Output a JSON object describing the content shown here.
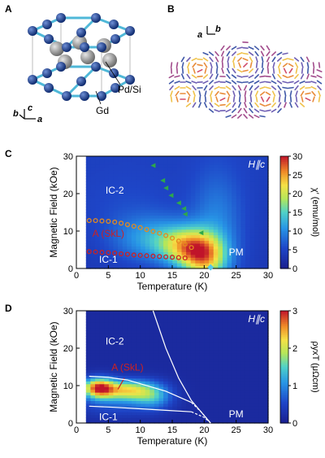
{
  "panels": {
    "a": {
      "label": "A",
      "atom_gd": "Gd",
      "atom_pdsi": "Pd/Si",
      "axis_a": "a",
      "axis_b": "b",
      "axis_c": "c"
    },
    "b": {
      "label": "B",
      "axis_a": "a",
      "axis_b": "b"
    },
    "c": {
      "label": "C"
    },
    "d": {
      "label": "D"
    }
  },
  "chart_data": [
    {
      "type": "heatmap",
      "panel": "C",
      "xlabel": "Temperature (K)",
      "ylabel": "Magnetic Field (kOe)",
      "xlim": [
        0,
        30
      ],
      "ylim": [
        0,
        30
      ],
      "xticks": [
        0,
        5,
        10,
        15,
        20,
        25,
        30
      ],
      "yticks": [
        0,
        10,
        20,
        30
      ],
      "colorbar": {
        "label": "χ′ (emu/mol)",
        "min": 0,
        "max": 30,
        "ticks": [
          0,
          5,
          10,
          15,
          20,
          25,
          30
        ]
      },
      "field_label": "H∥c",
      "annotations": [
        "IC-2",
        "A (SkL)",
        "IC-1",
        "PM"
      ],
      "colors": {
        "high": "#c0142a",
        "mid": "#f3e24a",
        "low": "#1a1f8f",
        "circle": "#e58a1e",
        "circle_red": "#cc2222",
        "triangle": "#2ea84a"
      },
      "series": [
        {
          "marker": "circle-orange",
          "x": [
            2,
            3,
            4,
            5,
            6,
            7,
            8,
            9,
            10,
            11,
            12,
            13,
            14,
            15,
            16,
            17,
            18
          ],
          "y": [
            12.8,
            12.8,
            12.7,
            12.6,
            12.4,
            12.1,
            11.7,
            11.3,
            10.9,
            10.4,
            9.9,
            9.4,
            8.8,
            8.1,
            7.3,
            6.5,
            5.6
          ]
        },
        {
          "marker": "circle-red",
          "x": [
            2,
            3,
            4,
            5,
            6,
            7,
            8,
            9,
            10,
            11,
            12,
            13,
            14,
            15,
            16,
            17
          ],
          "y": [
            4.5,
            4.4,
            4.3,
            4.2,
            4.1,
            3.9,
            3.8,
            3.6,
            3.5,
            3.4,
            3.3,
            3.2,
            3.1,
            3.0,
            2.9,
            2.8
          ]
        },
        {
          "marker": "triangle-green",
          "x": [
            12,
            13.5,
            14,
            14.8,
            16,
            16.8,
            17,
            19.5
          ],
          "y": [
            27.5,
            23.5,
            21.5,
            19.5,
            17.5,
            16.0,
            14.5,
            9.5
          ]
        },
        {
          "marker": "diamond-cyan",
          "x": [
            21
          ],
          "y": [
            0.3
          ]
        }
      ]
    },
    {
      "type": "heatmap",
      "panel": "D",
      "xlabel": "Temperature (K)",
      "ylabel": "Magnetic Field (kOe)",
      "xlim": [
        0,
        30
      ],
      "ylim": [
        0,
        30
      ],
      "xticks": [
        0,
        5,
        10,
        15,
        20,
        25,
        30
      ],
      "yticks": [
        0,
        10,
        20,
        30
      ],
      "colorbar": {
        "label": "ρyxT (μΩcm)",
        "min": 0,
        "max": 3,
        "ticks": [
          0,
          1,
          2,
          3
        ]
      },
      "field_label": "H∥c",
      "annotations": [
        "IC-2",
        "A (SkL)",
        "IC-1",
        "PM"
      ],
      "colors": {
        "high": "#c0142a",
        "mid": "#f3e24a",
        "low": "#1a1f8f",
        "boundary": "#ffffff"
      },
      "boundaries": [
        {
          "style": "solid",
          "x": [
            12,
            14,
            16,
            18,
            20,
            21
          ],
          "y": [
            30,
            20,
            12,
            6,
            2,
            0
          ]
        },
        {
          "style": "solid",
          "x": [
            2,
            5,
            8,
            10,
            12,
            14,
            16,
            18
          ],
          "y": [
            12.5,
            12.2,
            11.5,
            10.5,
            9.5,
            8.5,
            7.0,
            5.5
          ]
        },
        {
          "style": "dashed",
          "x": [
            18,
            19.5,
            21
          ],
          "y": [
            5.5,
            3,
            0
          ]
        },
        {
          "style": "solid",
          "x": [
            2,
            6,
            10,
            14,
            18
          ],
          "y": [
            4.5,
            4.2,
            3.8,
            3.4,
            3.0
          ]
        },
        {
          "style": "dashed",
          "x": [
            18,
            20,
            21
          ],
          "y": [
            3.0,
            1.5,
            0
          ]
        }
      ]
    }
  ]
}
